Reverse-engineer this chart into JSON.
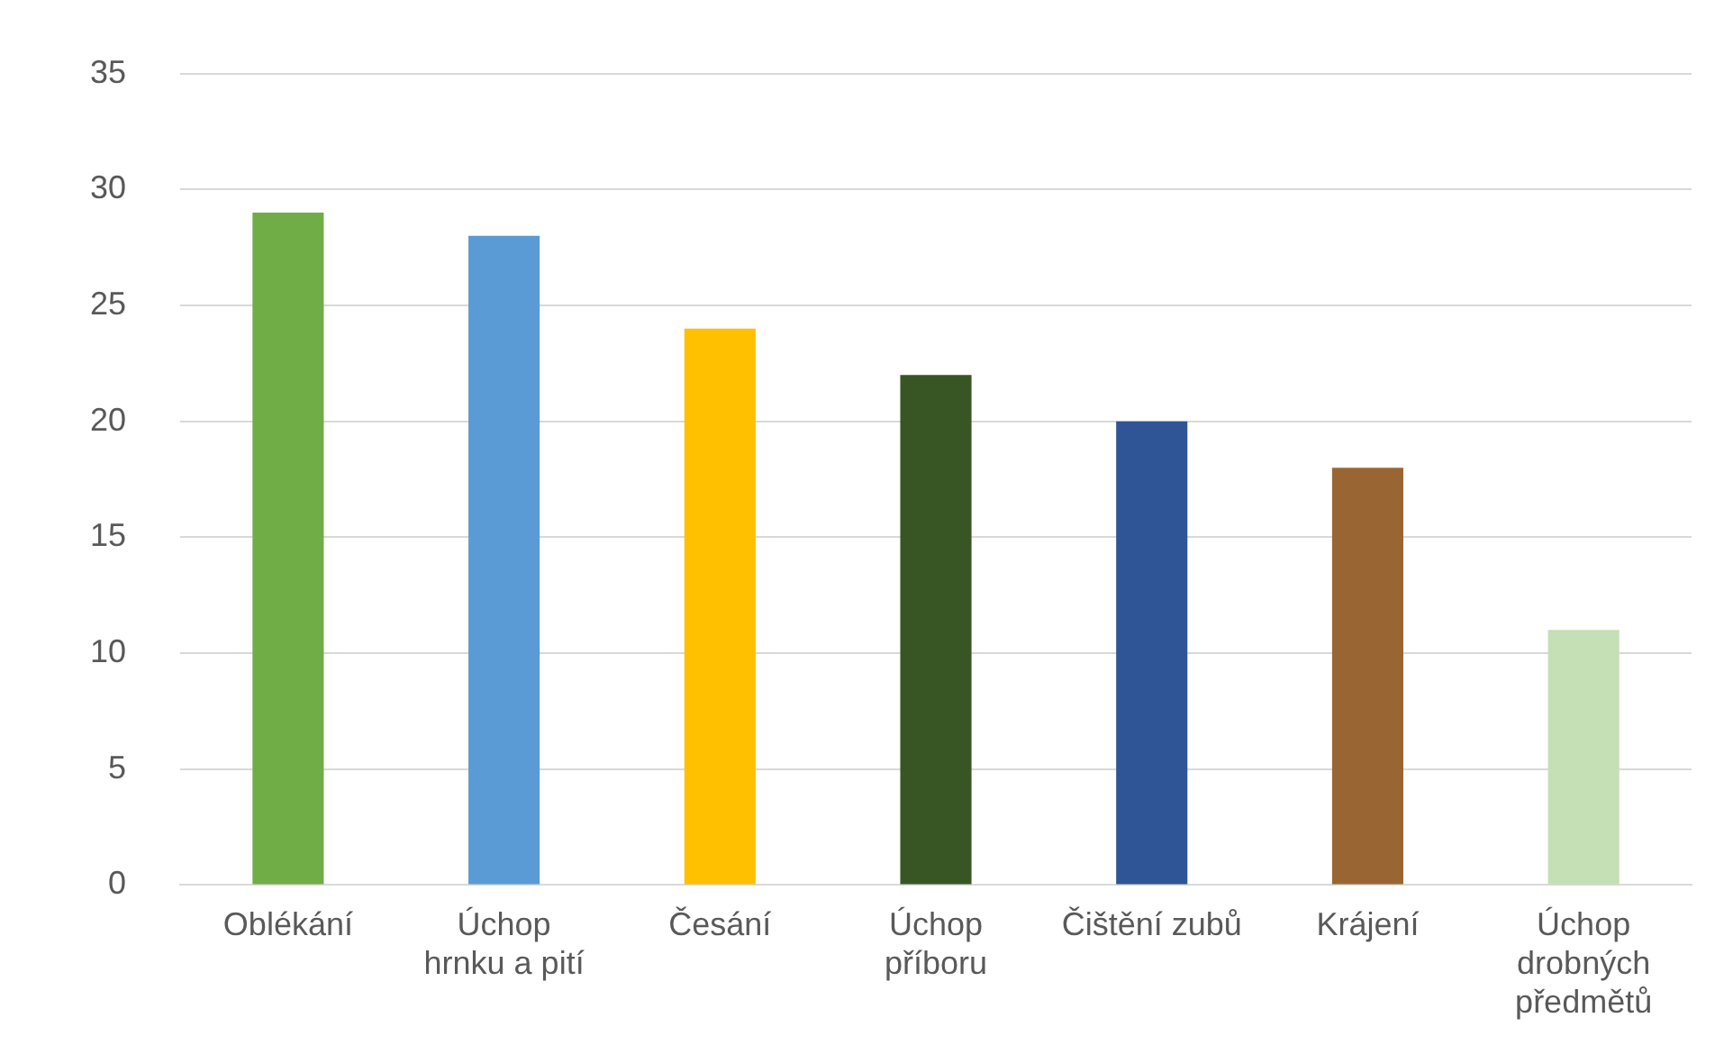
{
  "chart_data": {
    "type": "bar",
    "categories": [
      "Oblékání",
      "Úchop\nhrnku a pití",
      "Česání",
      "Úchop\npříboru",
      "Čištění zubů",
      "Krájení",
      "Úchop\ndrobných\npředmětů"
    ],
    "values": [
      29,
      28,
      24,
      22,
      20,
      18,
      11
    ],
    "colors": [
      "#70ad47",
      "#5b9bd5",
      "#ffc000",
      "#375623",
      "#2f5597",
      "#996633",
      "#c5e0b4"
    ],
    "ylim": [
      0,
      35
    ],
    "yticks": [
      0,
      5,
      10,
      15,
      20,
      25,
      30,
      35
    ],
    "grid": "y"
  }
}
